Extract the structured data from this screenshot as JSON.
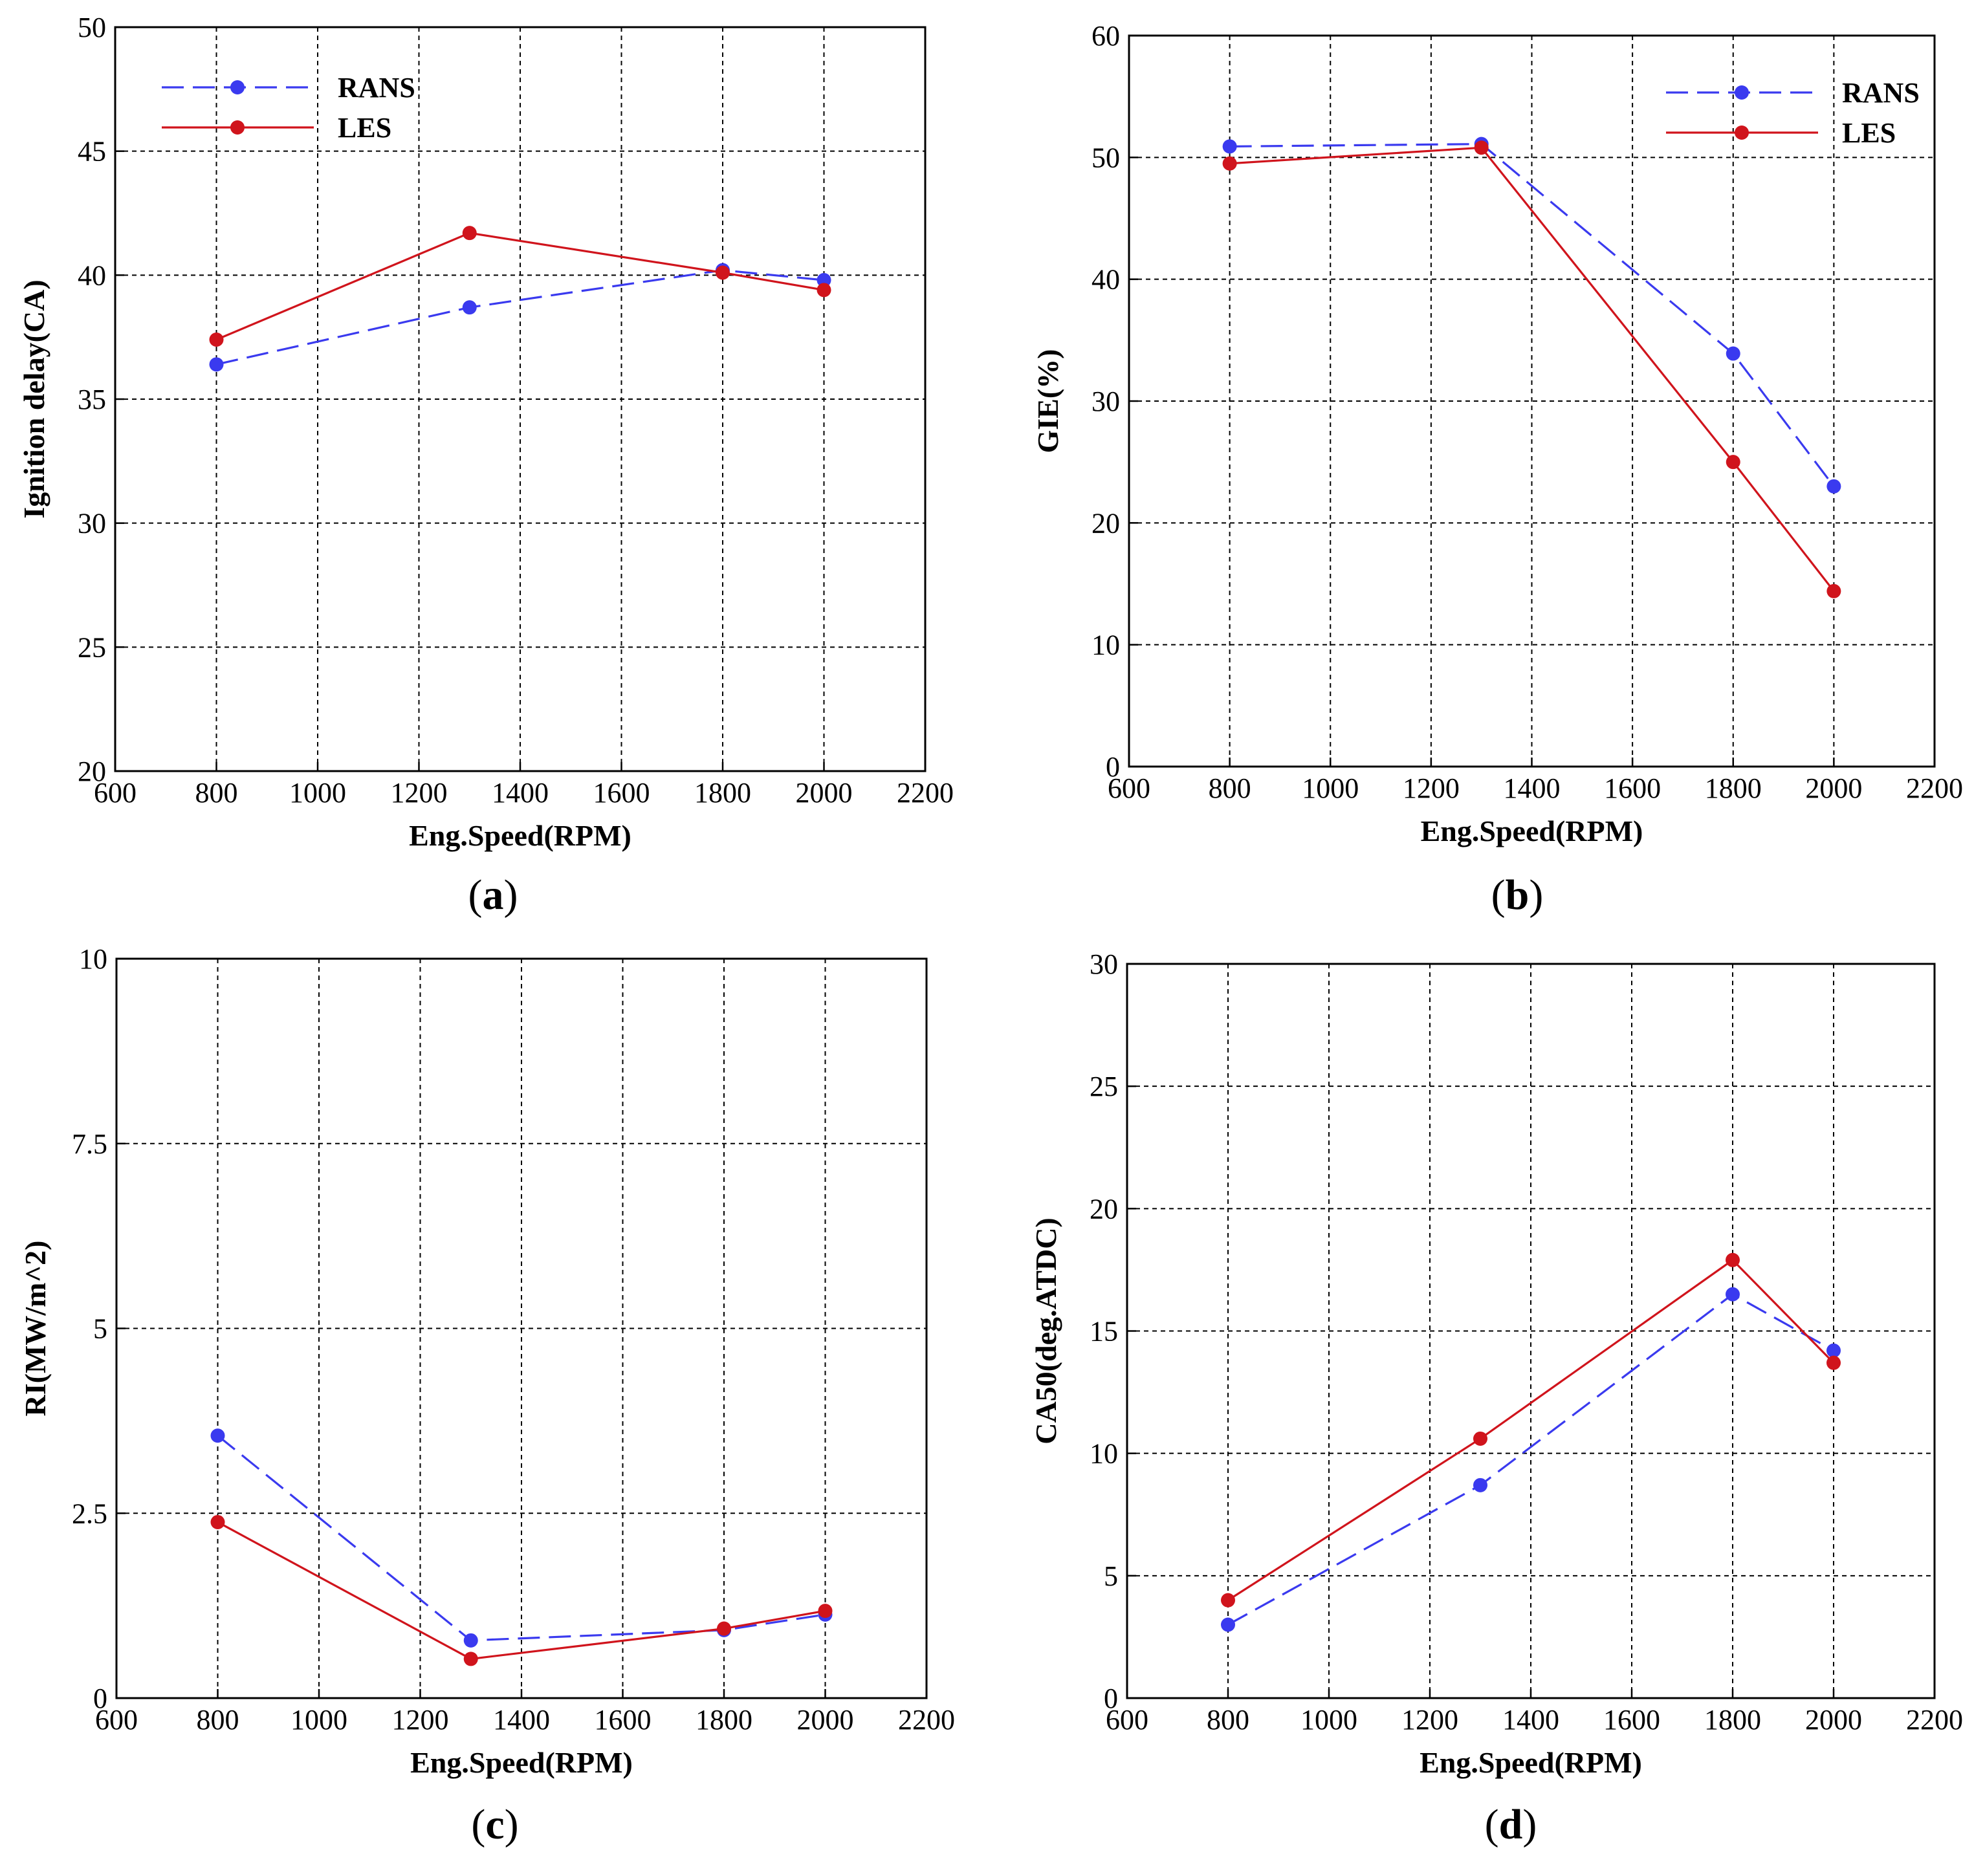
{
  "colors": {
    "rans": "#3a3aef",
    "les": "#d0141c",
    "grid": "#000000"
  },
  "chart_data": [
    {
      "type": "line",
      "panel": "a",
      "caption": "(a)",
      "xlabel": "Eng.Speed(RPM)",
      "ylabel": "Ignition delay(CA)",
      "xlim": [
        600,
        2200
      ],
      "ylim": [
        20,
        50
      ],
      "xticks": [
        600,
        800,
        1000,
        1200,
        1400,
        1600,
        1800,
        2000,
        2200
      ],
      "yticks": [
        20,
        25,
        30,
        35,
        40,
        45,
        50
      ],
      "ytick_labels": [
        "20",
        "25",
        "30",
        "35",
        "40",
        "45",
        "50"
      ],
      "grid": true,
      "legend_position": "top-left",
      "x": [
        800,
        1300,
        1800,
        2000
      ],
      "series": [
        {
          "name": "RANS",
          "style": "dashed",
          "values": [
            36.4,
            38.7,
            40.2,
            39.8
          ]
        },
        {
          "name": "LES",
          "style": "solid",
          "values": [
            37.4,
            41.7,
            40.1,
            39.4
          ]
        }
      ]
    },
    {
      "type": "line",
      "panel": "b",
      "caption": "(b)",
      "xlabel": "Eng.Speed(RPM)",
      "ylabel": "GIE(%)",
      "xlim": [
        600,
        2200
      ],
      "ylim": [
        0,
        60
      ],
      "xticks": [
        600,
        800,
        1000,
        1200,
        1400,
        1600,
        1800,
        2000,
        2200
      ],
      "yticks": [
        0,
        10,
        20,
        30,
        40,
        50,
        60
      ],
      "ytick_labels": [
        "0",
        "10",
        "20",
        "30",
        "40",
        "50",
        "60"
      ],
      "grid": true,
      "legend_position": "top-right",
      "x": [
        800,
        1300,
        1800,
        2000
      ],
      "series": [
        {
          "name": "RANS",
          "style": "dashed",
          "values": [
            50.9,
            51.1,
            33.9,
            23.0
          ]
        },
        {
          "name": "LES",
          "style": "solid",
          "values": [
            49.5,
            50.8,
            25.0,
            14.4
          ]
        }
      ]
    },
    {
      "type": "line",
      "panel": "c",
      "caption": "(c)",
      "xlabel": "Eng.Speed(RPM)",
      "ylabel": "RI(MW/m^2)",
      "xlim": [
        600,
        2200
      ],
      "ylim": [
        0,
        10
      ],
      "xticks": [
        600,
        800,
        1000,
        1200,
        1400,
        1600,
        1800,
        2000,
        2200
      ],
      "yticks": [
        0,
        2.5,
        5,
        7.5,
        10
      ],
      "ytick_labels": [
        "0",
        "2.5",
        "5",
        "7.5",
        "10"
      ],
      "grid": true,
      "x": [
        800,
        1300,
        1800,
        2000
      ],
      "series": [
        {
          "name": "RANS",
          "style": "dashed",
          "values": [
            3.55,
            0.78,
            0.92,
            1.13
          ]
        },
        {
          "name": "LES",
          "style": "solid",
          "values": [
            2.38,
            0.53,
            0.94,
            1.18
          ]
        }
      ]
    },
    {
      "type": "line",
      "panel": "d",
      "caption": "(d)",
      "xlabel": "Eng.Speed(RPM)",
      "ylabel": "CA50(deg.ATDC)",
      "xlim": [
        600,
        2200
      ],
      "ylim": [
        0,
        30
      ],
      "xticks": [
        600,
        800,
        1000,
        1200,
        1400,
        1600,
        1800,
        2000,
        2200
      ],
      "yticks": [
        0,
        5,
        10,
        15,
        20,
        25,
        30
      ],
      "ytick_labels": [
        "0",
        "5",
        "10",
        "15",
        "20",
        "25",
        "30"
      ],
      "grid": true,
      "x": [
        800,
        1300,
        1800,
        2000
      ],
      "series": [
        {
          "name": "RANS",
          "style": "dashed",
          "values": [
            3.0,
            8.7,
            16.5,
            14.2
          ]
        },
        {
          "name": "LES",
          "style": "solid",
          "values": [
            4.0,
            10.6,
            17.9,
            13.7
          ]
        }
      ]
    }
  ]
}
